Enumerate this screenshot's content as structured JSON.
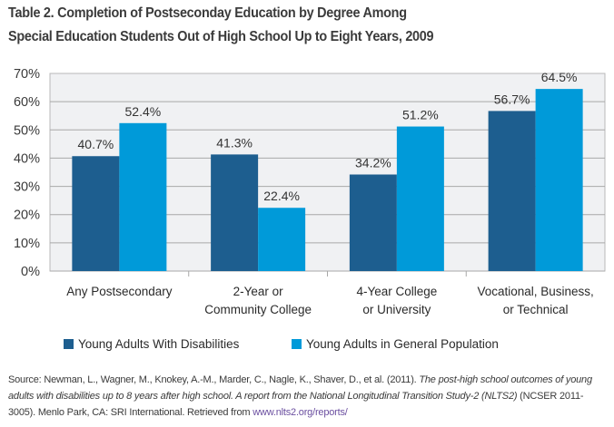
{
  "title_line1": "Table 2. Completion of Postseconday Education by Degree Among",
  "title_line2": "Special Education Students Out of High School Up to Eight Years, 2009",
  "colors": {
    "series1": "#1d5e8f",
    "series2": "#009ad9",
    "plot_bg": "#f0f1f3",
    "grid": "#a8a8a8"
  },
  "chart_data": {
    "type": "bar",
    "title": "Table 2. Completion of Postseconday Education by Degree Among Special Education Students Out of High School Up to Eight Years, 2009",
    "categories": [
      [
        "Any Postsecondary"
      ],
      [
        "2-Year or",
        "Community College"
      ],
      [
        "4-Year College",
        "or University"
      ],
      [
        "Vocational, Business,",
        "or Technical"
      ]
    ],
    "series": [
      {
        "name": "Young Adults With Disabilities",
        "values": [
          40.7,
          41.3,
          34.2,
          56.7
        ],
        "labels": [
          "40.7%",
          "41.3%",
          "34.2%",
          "56.7%"
        ]
      },
      {
        "name": "Young Adults in General Population",
        "values": [
          52.4,
          22.4,
          51.2,
          64.5
        ],
        "labels": [
          "52.4%",
          "22.4%",
          "51.2%",
          "64.5%"
        ]
      }
    ],
    "ylim": [
      0,
      70
    ],
    "yticks": [
      "0%",
      "10%",
      "20%",
      "30%",
      "40%",
      "50%",
      "60%",
      "70%"
    ],
    "xlabel": "",
    "ylabel": "",
    "grid": true,
    "legend": "bottom"
  },
  "legend": {
    "item1": "Young Adults With Disabilities",
    "item2": "Young Adults in General Population"
  },
  "source": {
    "prefix": "Source: Newman, L., Wagner, M., Knokey, A.-M., Marder, C., Nagle, K., Shaver, D., et al. (2011). ",
    "italic": "The post-high school outcomes of young adults with disabilities up to 8 years after high school. A report from the National Longitudinal Transition Study-2 (NLTS2)",
    "suffix": " (NCSER 2011-3005). Menlo Park, CA: SRI International. Retrieved from ",
    "link": "www.nlts2.org/reports/"
  }
}
